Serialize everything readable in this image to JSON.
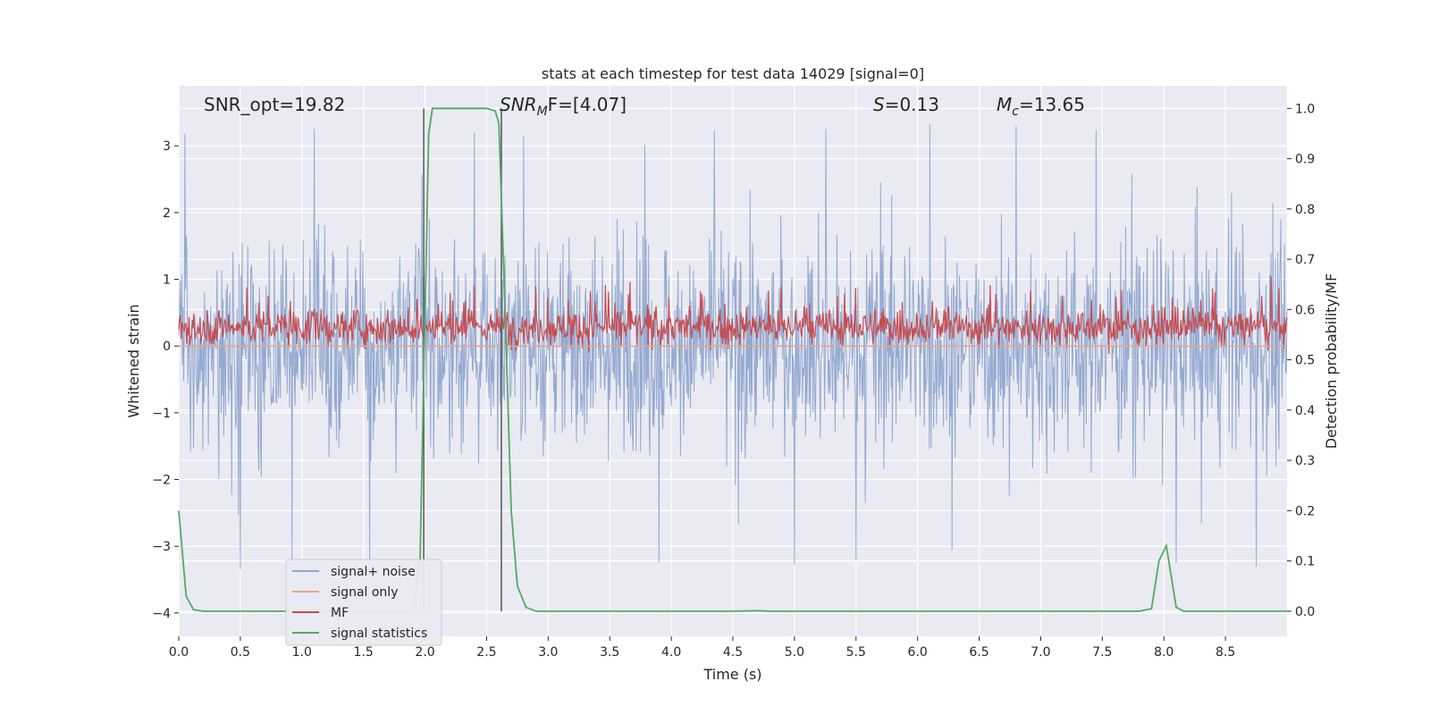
{
  "chart_data": {
    "type": "line",
    "title": "stats at each timestep for test data 14029 [signal=0]",
    "xlabel": "Time (s)",
    "ylabel": "Whitened strain",
    "y2label": "Detection probability/MF",
    "xlim": [
      0.0,
      9.0
    ],
    "ylim": [
      -4.35,
      3.9
    ],
    "y2lim": [
      -0.05,
      1.045
    ],
    "xticks": [
      0.0,
      0.5,
      1.0,
      1.5,
      2.0,
      2.5,
      3.0,
      3.5,
      4.0,
      4.5,
      5.0,
      5.5,
      6.0,
      6.5,
      7.0,
      7.5,
      8.0,
      8.5
    ],
    "xtick_labels": [
      "0.0",
      "0.5",
      "1.0",
      "1.5",
      "2.0",
      "2.5",
      "3.0",
      "3.5",
      "4.0",
      "4.5",
      "5.0",
      "5.5",
      "6.0",
      "6.5",
      "7.0",
      "7.5",
      "8.0",
      "8.5"
    ],
    "yticks": [
      -4,
      -3,
      -2,
      -1,
      0,
      1,
      2,
      3
    ],
    "ytick_labels": [
      "−4",
      "−3",
      "−2",
      "−1",
      "0",
      "1",
      "2",
      "3"
    ],
    "y2ticks": [
      0.0,
      0.1,
      0.2,
      0.3,
      0.4,
      0.5,
      0.6,
      0.7,
      0.8,
      0.9,
      1.0
    ],
    "y2tick_labels": [
      "0.0",
      "0.1",
      "0.2",
      "0.3",
      "0.4",
      "0.5",
      "0.6",
      "0.7",
      "0.8",
      "0.9",
      "1.0"
    ],
    "grid": true,
    "legend_position": "lower-left",
    "annotations": {
      "snr_opt": "SNR_opt=19.82",
      "snr_mf_label": "SNR",
      "snr_mf_sub": "M",
      "snr_mf_rest": "F=[4.07]",
      "s_label": "S",
      "s_value": "=0.13",
      "mc_label": "M",
      "mc_sub": "c",
      "mc_value": "=13.65"
    },
    "vlines": [
      1.99,
      2.62
    ],
    "series": [
      {
        "name": "signal+ noise",
        "color": "#8fa6cf",
        "axis": "left",
        "style": "dense noise, approx. between -2.5 and 2.8 with spikes to ±3.4",
        "spikes_x": [
          0.05,
          0.5,
          0.92,
          1.1,
          1.55,
          2.4,
          2.8,
          3.9,
          4.35,
          5.0,
          5.5,
          6.1,
          6.8,
          7.45,
          8.1,
          8.75
        ]
      },
      {
        "name": "signal only",
        "color": "#e8a58a",
        "axis": "left",
        "x": [
          0.0,
          9.0
        ],
        "y": [
          0.0,
          0.0
        ]
      },
      {
        "name": "MF",
        "color": "#c44e52",
        "axis": "right",
        "style": "noise band approx. 0.53 to 0.61 on right axis, peaks up to 0.66"
      },
      {
        "name": "signal statistics",
        "color": "#55a868",
        "axis": "right",
        "x": [
          0.0,
          0.06,
          0.12,
          0.2,
          0.3,
          0.5,
          1.0,
          1.5,
          1.9,
          1.96,
          2.0,
          2.03,
          2.06,
          2.1,
          2.3,
          2.5,
          2.57,
          2.6,
          2.65,
          2.7,
          2.75,
          2.82,
          2.9,
          3.0,
          4.0,
          4.5,
          4.7,
          4.8,
          5.0,
          6.0,
          7.0,
          7.8,
          7.9,
          7.96,
          8.02,
          8.1,
          8.16,
          8.22,
          8.3,
          9.0
        ],
        "y": [
          0.2,
          0.03,
          0.003,
          0.0,
          0.0,
          0.0,
          0.0,
          0.0,
          0.0,
          0.1,
          0.6,
          0.95,
          1.0,
          1.0,
          1.0,
          1.0,
          0.995,
          0.97,
          0.6,
          0.2,
          0.05,
          0.008,
          0.0,
          0.0,
          0.0,
          0.0,
          0.001,
          0.0,
          0.0,
          0.0,
          0.0,
          0.0,
          0.005,
          0.1,
          0.13,
          0.008,
          0.0,
          0.0,
          0.0,
          0.0
        ]
      }
    ]
  }
}
